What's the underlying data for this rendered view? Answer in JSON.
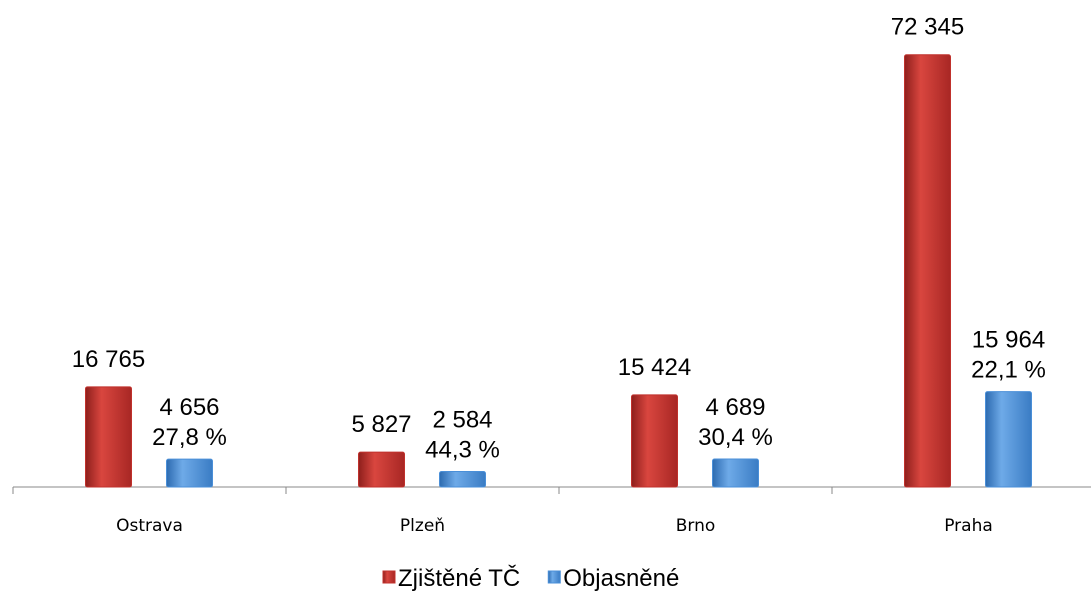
{
  "chart_data": {
    "type": "bar",
    "categories": [
      "Ostrava",
      "Plzeň",
      "Brno",
      "Praha"
    ],
    "series": [
      {
        "name": "Zjištěné TČ",
        "color": "#c0312c",
        "values": [
          16765,
          5827,
          15424,
          72345
        ],
        "value_labels": [
          "16 765",
          "5 827",
          "15 424",
          "72 345"
        ]
      },
      {
        "name": "Objasněné",
        "color": "#4a8fd8",
        "values": [
          4656,
          2584,
          4689,
          15964
        ],
        "value_labels": [
          "4 656",
          "2 584",
          "4 689",
          "15 964"
        ],
        "shares": [
          27.8,
          44.3,
          30.4,
          22.1
        ],
        "share_labels": [
          "27,8 %",
          "44,3 %",
          "30,4 %",
          "22,1 %"
        ]
      }
    ],
    "ylim": [
      0,
      80000
    ],
    "legend": "bottom"
  }
}
